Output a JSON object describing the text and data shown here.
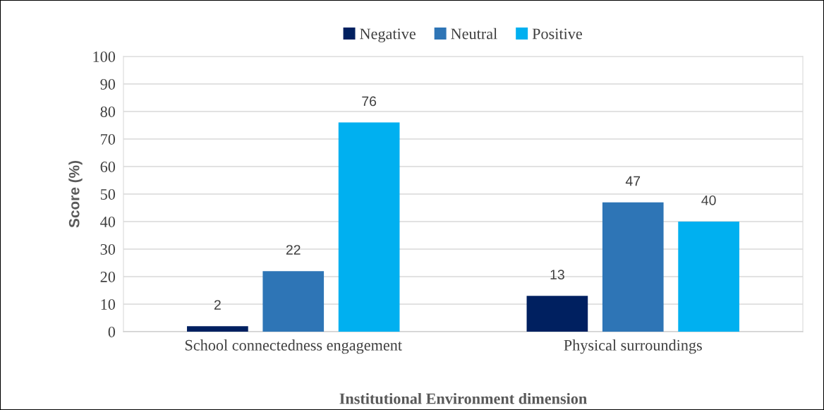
{
  "chart_data": {
    "type": "bar",
    "xlabel": "Institutional Environment dimension",
    "ylabel": "Score (%)",
    "categories": [
      "School connectedness engagement",
      "Physical surroundings"
    ],
    "series": [
      {
        "name": "Negative",
        "color": "#002060",
        "values": [
          2,
          13
        ]
      },
      {
        "name": "Neutral",
        "color": "#2e75b6",
        "values": [
          22,
          47
        ]
      },
      {
        "name": "Positive",
        "color": "#00b0f0",
        "values": [
          76,
          40
        ]
      }
    ],
    "ylim": [
      0,
      100
    ],
    "yticks": [
      0,
      10,
      20,
      30,
      40,
      50,
      60,
      70,
      80,
      90,
      100
    ],
    "grid": "y",
    "legend": "top",
    "data_labels": true
  }
}
